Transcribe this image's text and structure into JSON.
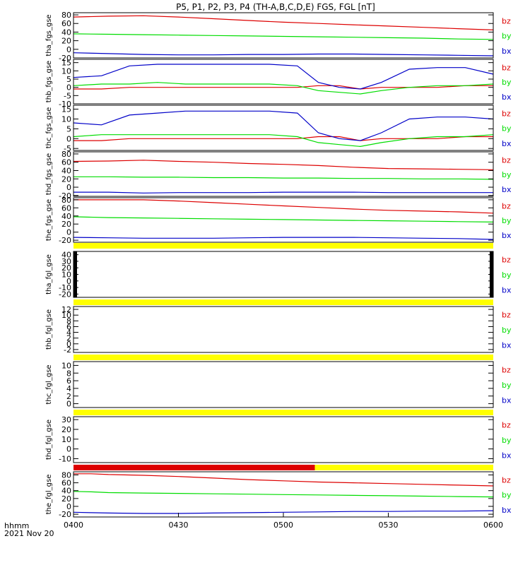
{
  "title": "P5, P1, P2, P3, P4 (TH-A,B,C,D,E) FGS, FGL [nT]",
  "x_axis": {
    "ticks": [
      "0400",
      "0430",
      "0500",
      "0530",
      "0600"
    ],
    "label_line1": "hhmm",
    "label_line2": "2021 Nov 20"
  },
  "colors": {
    "bx": "#0000c8",
    "by": "#00dd00",
    "bz": "#dd0000",
    "bar_yellow": "#ffff00",
    "bar_red": "#dd0000",
    "axis": "#000000"
  },
  "chart_data": [
    {
      "type": "line",
      "ylabel": "tha_fgs_gse",
      "ylim": [
        -20,
        85
      ],
      "yticks": [
        -20,
        0,
        20,
        40,
        60,
        80
      ],
      "x": [
        0,
        10,
        20,
        30,
        40,
        50,
        60,
        70,
        80,
        90,
        100,
        110,
        120
      ],
      "series": [
        {
          "name": "bz",
          "values": [
            75,
            77,
            78,
            75,
            71,
            67,
            63,
            60,
            57,
            54,
            51,
            48,
            45
          ]
        },
        {
          "name": "by",
          "values": [
            36,
            35,
            34,
            33,
            32,
            31,
            30,
            29,
            28,
            27,
            26,
            24,
            23
          ]
        },
        {
          "name": "bx",
          "values": [
            -8,
            -10,
            -12,
            -13,
            -13,
            -12,
            -12,
            -11,
            -11,
            -12,
            -13,
            -14,
            -15
          ]
        }
      ]
    },
    {
      "type": "line",
      "ylabel": "thb_fgs_gse",
      "ylim": [
        -10,
        17
      ],
      "yticks": [
        -10,
        -5,
        0,
        5,
        10,
        15
      ],
      "x": [
        0,
        8,
        16,
        24,
        32,
        40,
        48,
        56,
        64,
        70,
        76,
        82,
        88,
        96,
        104,
        112,
        120
      ],
      "series": [
        {
          "name": "bz",
          "values": [
            -1,
            -1,
            0,
            0,
            0,
            0,
            0,
            0,
            0,
            1,
            1,
            -1,
            0,
            0,
            0,
            1,
            1
          ]
        },
        {
          "name": "by",
          "values": [
            1,
            2,
            2,
            3,
            2,
            2,
            2,
            2,
            1,
            -2,
            -3,
            -4,
            -2,
            0,
            1,
            1,
            2
          ]
        },
        {
          "name": "bx",
          "values": [
            6,
            7,
            13,
            14,
            14,
            14,
            14,
            14,
            13,
            3,
            0,
            -1,
            3,
            11,
            12,
            12,
            8
          ]
        }
      ]
    },
    {
      "type": "line",
      "ylabel": "thc_fgs_gse",
      "ylim": [
        -6,
        17
      ],
      "yticks": [
        -5,
        0,
        5,
        10,
        15
      ],
      "x": [
        0,
        8,
        16,
        24,
        32,
        40,
        48,
        56,
        64,
        70,
        76,
        82,
        88,
        96,
        104,
        112,
        120
      ],
      "series": [
        {
          "name": "bz",
          "values": [
            -1,
            -1,
            0,
            0,
            0,
            0,
            0,
            0,
            0,
            1,
            1,
            -1,
            0,
            0,
            0,
            1,
            1
          ]
        },
        {
          "name": "by",
          "values": [
            1,
            2,
            2,
            2,
            2,
            2,
            2,
            2,
            1,
            -2,
            -3,
            -4,
            -2,
            0,
            1,
            1,
            2
          ]
        },
        {
          "name": "bx",
          "values": [
            8,
            7,
            12,
            13,
            14,
            14,
            14,
            14,
            13,
            3,
            0,
            -1,
            3,
            10,
            11,
            11,
            10
          ]
        }
      ]
    },
    {
      "type": "line",
      "ylabel": "thd_fgs_gse",
      "ylim": [
        -22,
        85
      ],
      "yticks": [
        -20,
        0,
        20,
        40,
        60,
        80
      ],
      "x": [
        0,
        10,
        20,
        30,
        40,
        50,
        60,
        70,
        80,
        90,
        100,
        110,
        120
      ],
      "series": [
        {
          "name": "bz",
          "values": [
            62,
            63,
            65,
            62,
            60,
            57,
            55,
            52,
            48,
            45,
            44,
            43,
            42
          ]
        },
        {
          "name": "by",
          "values": [
            25,
            25,
            24,
            24,
            23,
            23,
            22,
            22,
            21,
            21,
            20,
            20,
            19
          ]
        },
        {
          "name": "bx",
          "values": [
            -12,
            -12,
            -14,
            -13,
            -13,
            -13,
            -12,
            -12,
            -12,
            -13,
            -13,
            -13,
            -13
          ]
        }
      ]
    },
    {
      "type": "line",
      "ylabel": "the_fgs_gse",
      "ylim": [
        -25,
        85
      ],
      "yticks": [
        -20,
        0,
        20,
        40,
        60,
        80
      ],
      "x": [
        0,
        10,
        20,
        30,
        40,
        50,
        60,
        70,
        80,
        90,
        100,
        110,
        120
      ],
      "series": [
        {
          "name": "bz",
          "values": [
            80,
            80,
            80,
            77,
            73,
            69,
            65,
            61,
            57,
            54,
            52,
            50,
            47
          ]
        },
        {
          "name": "by",
          "values": [
            38,
            36,
            35,
            34,
            33,
            32,
            31,
            30,
            29,
            28,
            27,
            26,
            25
          ]
        },
        {
          "name": "bx",
          "values": [
            -13,
            -14,
            -15,
            -15,
            -15,
            -14,
            -13,
            -13,
            -13,
            -14,
            -15,
            -16,
            -18
          ]
        }
      ]
    },
    {
      "type": "line",
      "ylabel": "tha_fgl_gse",
      "ylim": [
        -25,
        45
      ],
      "yticks": [
        -20,
        -10,
        0,
        10,
        20,
        30,
        40
      ],
      "x": [],
      "series": [
        {
          "name": "bz",
          "values": []
        },
        {
          "name": "by",
          "values": []
        },
        {
          "name": "bx",
          "values": []
        }
      ]
    },
    {
      "type": "line",
      "ylabel": "thb_fgl_gse",
      "ylim": [
        -3,
        13
      ],
      "yticks": [
        -2,
        0,
        2,
        4,
        6,
        8,
        10,
        12
      ],
      "x": [],
      "series": [
        {
          "name": "bz",
          "values": []
        },
        {
          "name": "by",
          "values": []
        },
        {
          "name": "bx",
          "values": []
        }
      ]
    },
    {
      "type": "line",
      "ylabel": "thc_fgl_gse",
      "ylim": [
        -1,
        11
      ],
      "yticks": [
        0,
        2,
        4,
        6,
        8,
        10
      ],
      "x": [],
      "series": [
        {
          "name": "bz",
          "values": []
        },
        {
          "name": "by",
          "values": []
        },
        {
          "name": "bx",
          "values": []
        }
      ]
    },
    {
      "type": "line",
      "ylabel": "thd_fgl_gse",
      "ylim": [
        -14,
        33
      ],
      "yticks": [
        -10,
        0,
        10,
        20,
        30
      ],
      "x": [],
      "series": [
        {
          "name": "bz",
          "values": []
        },
        {
          "name": "by",
          "values": []
        },
        {
          "name": "bx",
          "values": []
        }
      ]
    },
    {
      "type": "line",
      "ylabel": "the_fgl_gse",
      "ylim": [
        -27,
        88
      ],
      "yticks": [
        -20,
        0,
        20,
        40,
        60,
        80
      ],
      "x": [
        0,
        5,
        10,
        20,
        30,
        40,
        50,
        60,
        70,
        80,
        90,
        100,
        110,
        120
      ],
      "series": [
        {
          "name": "bz",
          "values": [
            83,
            83,
            81,
            79,
            76,
            72,
            68,
            65,
            62,
            60,
            58,
            56,
            54,
            52
          ]
        },
        {
          "name": "by",
          "values": [
            38,
            37,
            35,
            34,
            33,
            32,
            31,
            30,
            29,
            28,
            27,
            26,
            25,
            24
          ]
        },
        {
          "name": "bx",
          "values": [
            -15,
            -16,
            -17,
            -18,
            -18,
            -17,
            -16,
            -15,
            -14,
            -13,
            -13,
            -12,
            -12,
            -11
          ]
        }
      ]
    }
  ]
}
